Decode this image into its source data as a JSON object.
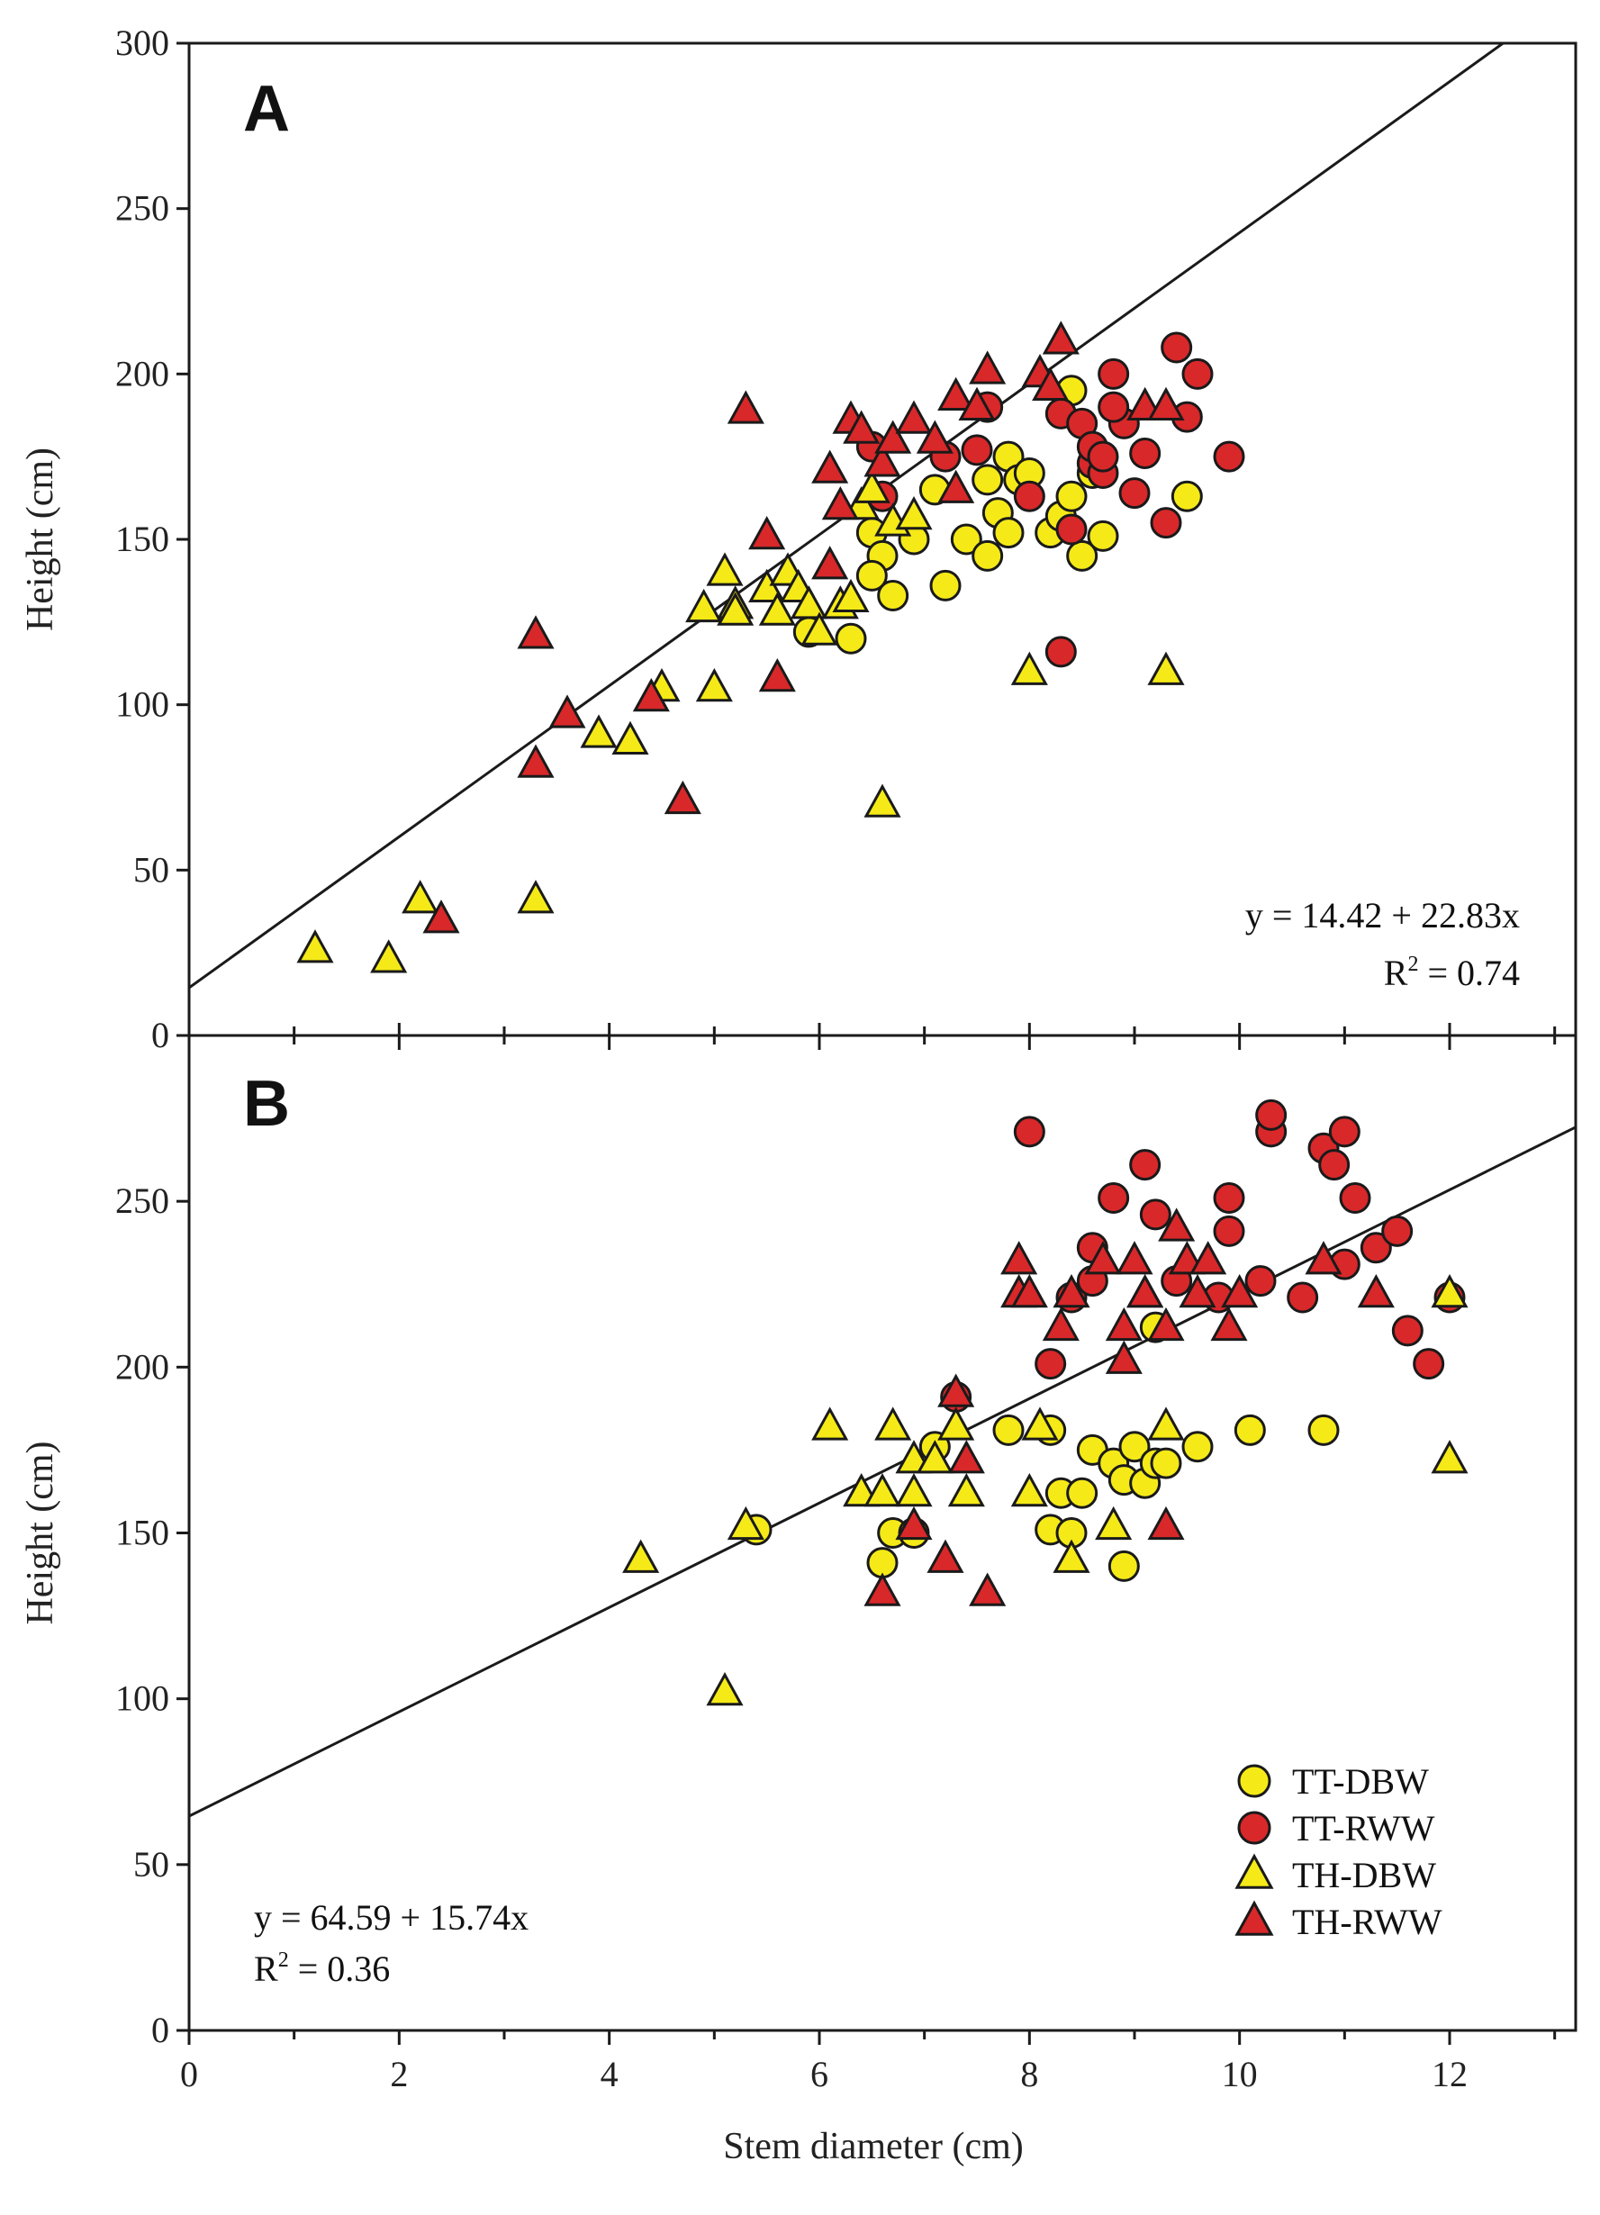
{
  "colors": {
    "yellow": "#f5ea17",
    "red": "#d8282a",
    "stroke": "#1a1a1a"
  },
  "chart_data": [
    {
      "type": "scatter",
      "panel": "A",
      "xlabel": "Stem diameter (cm)",
      "ylabel": "Height (cm)",
      "xlim": [
        0,
        13.2
      ],
      "ylim": [
        0,
        300
      ],
      "yticks": [
        0,
        50,
        100,
        150,
        200,
        250,
        300
      ],
      "regression": {
        "intercept": 14.42,
        "slope": 22.83
      },
      "equation": "y = 14.42 + 22.83x",
      "r2_prefix": "R",
      "r2_sup": "2",
      "r2_suffix": " = 0.74",
      "legend": false,
      "series": [
        {
          "name": "TT-DBW",
          "marker": "circle",
          "color": "#f5ea17",
          "points": [
            [
              5.9,
              122
            ],
            [
              6.3,
              120
            ],
            [
              6.5,
              152
            ],
            [
              6.6,
              145
            ],
            [
              6.5,
              139
            ],
            [
              6.7,
              133
            ],
            [
              6.9,
              150
            ],
            [
              7.1,
              165
            ],
            [
              7.2,
              136
            ],
            [
              7.4,
              150
            ],
            [
              7.6,
              145
            ],
            [
              7.7,
              158
            ],
            [
              7.8,
              152
            ],
            [
              7.8,
              175
            ],
            [
              7.9,
              168
            ],
            [
              8.0,
              170
            ],
            [
              8.2,
              152
            ],
            [
              8.3,
              157
            ],
            [
              8.4,
              163
            ],
            [
              8.5,
              145
            ],
            [
              8.6,
              170
            ],
            [
              8.7,
              151
            ],
            [
              8.4,
              195
            ],
            [
              9.5,
              163
            ],
            [
              7.6,
              168
            ]
          ]
        },
        {
          "name": "TT-RWW",
          "marker": "circle",
          "color": "#d8282a",
          "points": [
            [
              6.5,
              178
            ],
            [
              6.6,
              163
            ],
            [
              7.2,
              175
            ],
            [
              7.6,
              190
            ],
            [
              7.5,
              177
            ],
            [
              8.0,
              163
            ],
            [
              8.3,
              188
            ],
            [
              8.5,
              185
            ],
            [
              8.6,
              173
            ],
            [
              8.6,
              178
            ],
            [
              8.7,
              170
            ],
            [
              8.8,
              200
            ],
            [
              8.9,
              185
            ],
            [
              8.8,
              190
            ],
            [
              9.0,
              164
            ],
            [
              9.1,
              176
            ],
            [
              9.3,
              155
            ],
            [
              9.4,
              208
            ],
            [
              9.5,
              187
            ],
            [
              9.6,
              200
            ],
            [
              9.9,
              175
            ],
            [
              8.3,
              116
            ],
            [
              8.4,
              153
            ],
            [
              8.7,
              175
            ]
          ]
        },
        {
          "name": "TH-DBW",
          "marker": "triangle",
          "color": "#f5ea17",
          "points": [
            [
              1.2,
              26
            ],
            [
              1.9,
              23
            ],
            [
              2.2,
              41
            ],
            [
              3.3,
              41
            ],
            [
              3.9,
              91
            ],
            [
              4.2,
              89
            ],
            [
              4.5,
              105
            ],
            [
              4.9,
              129
            ],
            [
              5.0,
              105
            ],
            [
              5.1,
              140
            ],
            [
              5.2,
              130
            ],
            [
              5.2,
              128
            ],
            [
              5.5,
              135
            ],
            [
              5.6,
              128
            ],
            [
              5.7,
              140
            ],
            [
              5.8,
              135
            ],
            [
              5.9,
              130
            ],
            [
              6.0,
              122
            ],
            [
              6.2,
              130
            ],
            [
              6.4,
              160
            ],
            [
              6.5,
              165
            ],
            [
              6.6,
              70
            ],
            [
              6.7,
              155
            ],
            [
              6.9,
              157
            ],
            [
              8.0,
              110
            ],
            [
              9.3,
              110
            ],
            [
              6.3,
              132
            ]
          ]
        },
        {
          "name": "TH-RWW",
          "marker": "triangle",
          "color": "#d8282a",
          "points": [
            [
              2.4,
              35
            ],
            [
              3.3,
              121
            ],
            [
              3.3,
              82
            ],
            [
              3.6,
              97
            ],
            [
              4.4,
              102
            ],
            [
              4.7,
              71
            ],
            [
              5.3,
              189
            ],
            [
              5.5,
              151
            ],
            [
              5.6,
              108
            ],
            [
              6.1,
              142
            ],
            [
              6.1,
              171
            ],
            [
              6.2,
              160
            ],
            [
              6.3,
              186
            ],
            [
              6.4,
              183
            ],
            [
              6.6,
              173
            ],
            [
              6.7,
              180
            ],
            [
              6.9,
              186
            ],
            [
              7.1,
              180
            ],
            [
              7.3,
              165
            ],
            [
              7.3,
              193
            ],
            [
              7.5,
              190
            ],
            [
              7.6,
              201
            ],
            [
              8.1,
              200
            ],
            [
              8.2,
              196
            ],
            [
              8.3,
              210
            ],
            [
              9.1,
              190
            ],
            [
              9.3,
              190
            ]
          ]
        }
      ]
    },
    {
      "type": "scatter",
      "panel": "B",
      "xlabel": "Stem diameter (cm)",
      "ylabel": "Height (cm)",
      "xlim": [
        0,
        13.2
      ],
      "ylim": [
        0,
        300
      ],
      "yticks": [
        0,
        50,
        100,
        150,
        200,
        250
      ],
      "xticks": [
        0,
        2,
        4,
        6,
        8,
        10,
        12
      ],
      "regression": {
        "intercept": 64.59,
        "slope": 15.74
      },
      "equation": "y = 64.59 + 15.74x",
      "r2_prefix": "R",
      "r2_sup": "2",
      "r2_suffix": " = 0.36",
      "legend": true,
      "series": [
        {
          "name": "TT-DBW",
          "marker": "circle",
          "color": "#f5ea17",
          "points": [
            [
              5.4,
              151
            ],
            [
              6.6,
              141
            ],
            [
              6.7,
              150
            ],
            [
              6.9,
              150
            ],
            [
              7.1,
              176
            ],
            [
              7.8,
              181
            ],
            [
              8.2,
              151
            ],
            [
              8.3,
              162
            ],
            [
              8.4,
              150
            ],
            [
              8.5,
              162
            ],
            [
              8.6,
              175
            ],
            [
              8.8,
              171
            ],
            [
              8.9,
              166
            ],
            [
              8.9,
              140
            ],
            [
              9.0,
              176
            ],
            [
              9.1,
              165
            ],
            [
              9.2,
              171
            ],
            [
              9.3,
              171
            ],
            [
              9.6,
              176
            ],
            [
              10.1,
              181
            ],
            [
              10.8,
              181
            ],
            [
              8.2,
              181
            ],
            [
              9.2,
              212
            ]
          ]
        },
        {
          "name": "TT-RWW",
          "marker": "circle",
          "color": "#d8282a",
          "points": [
            [
              7.3,
              191
            ],
            [
              8.0,
              271
            ],
            [
              8.2,
              201
            ],
            [
              8.4,
              221
            ],
            [
              8.6,
              236
            ],
            [
              8.8,
              251
            ],
            [
              9.1,
              261
            ],
            [
              9.2,
              246
            ],
            [
              9.4,
              226
            ],
            [
              9.8,
              221
            ],
            [
              9.9,
              251
            ],
            [
              9.9,
              241
            ],
            [
              10.2,
              226
            ],
            [
              10.3,
              271
            ],
            [
              10.3,
              276
            ],
            [
              10.6,
              221
            ],
            [
              10.8,
              266
            ],
            [
              10.9,
              261
            ],
            [
              11.0,
              271
            ],
            [
              11.0,
              231
            ],
            [
              11.1,
              251
            ],
            [
              11.3,
              236
            ],
            [
              11.5,
              241
            ],
            [
              11.6,
              211
            ],
            [
              11.8,
              201
            ],
            [
              12.0,
              221
            ],
            [
              8.6,
              226
            ]
          ]
        },
        {
          "name": "TH-DBW",
          "marker": "triangle",
          "color": "#f5ea17",
          "points": [
            [
              4.3,
              142
            ],
            [
              5.1,
              102
            ],
            [
              5.3,
              152
            ],
            [
              6.1,
              182
            ],
            [
              6.4,
              162
            ],
            [
              6.6,
              162
            ],
            [
              6.7,
              182
            ],
            [
              6.9,
              162
            ],
            [
              6.9,
              172
            ],
            [
              7.1,
              172
            ],
            [
              7.3,
              182
            ],
            [
              7.4,
              162
            ],
            [
              8.0,
              162
            ],
            [
              8.1,
              182
            ],
            [
              8.4,
              142
            ],
            [
              8.8,
              152
            ],
            [
              9.1,
              222
            ],
            [
              9.3,
              182
            ],
            [
              12.0,
              172
            ],
            [
              12.0,
              222
            ]
          ]
        },
        {
          "name": "TH-RWW",
          "marker": "triangle",
          "color": "#d8282a",
          "points": [
            [
              6.6,
              132
            ],
            [
              6.9,
              152
            ],
            [
              7.2,
              142
            ],
            [
              7.3,
              192
            ],
            [
              7.4,
              172
            ],
            [
              7.6,
              132
            ],
            [
              7.9,
              232
            ],
            [
              7.9,
              222
            ],
            [
              8.0,
              222
            ],
            [
              8.3,
              212
            ],
            [
              8.4,
              222
            ],
            [
              8.7,
              232
            ],
            [
              8.9,
              202
            ],
            [
              8.9,
              212
            ],
            [
              9.0,
              232
            ],
            [
              9.1,
              222
            ],
            [
              9.3,
              152
            ],
            [
              9.3,
              212
            ],
            [
              9.4,
              242
            ],
            [
              9.5,
              232
            ],
            [
              9.7,
              232
            ],
            [
              9.9,
              212
            ],
            [
              10.0,
              222
            ],
            [
              10.8,
              232
            ],
            [
              11.3,
              222
            ],
            [
              9.6,
              222
            ]
          ]
        }
      ]
    }
  ]
}
